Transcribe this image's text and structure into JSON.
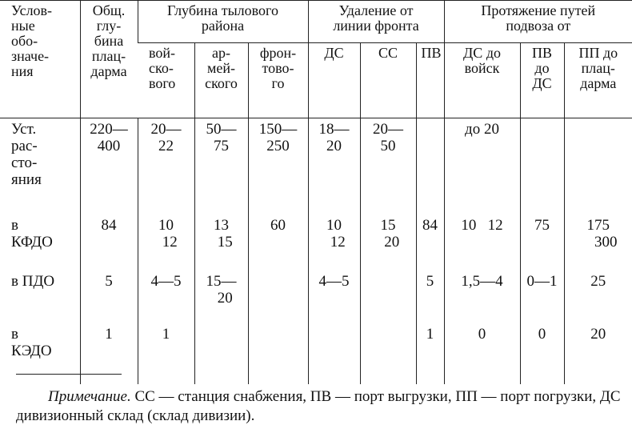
{
  "table": {
    "header_top": [
      "Услов-\nные\nобо-\nзначе-\nния",
      "Общ.\nглу-\nбина\nплац-\nдарма",
      "Глубина тылового\nрайона",
      "Удаление от\nлинии фронта",
      "Протяжение путей\nподвоза от"
    ],
    "header_sub": [
      "вой-\nско-\nвого",
      "ар-\nмей-\nского",
      "фрон-\nтово-\nго",
      "ДС",
      "СС",
      "ПВ",
      "ДС до\nвойск",
      "ПВ\nдо\nДС",
      "ПП до\nплац-\nдарма"
    ],
    "rows": [
      [
        "Уст.\nрас-\nсто-\nяния",
        "220—\n400",
        "20—\n22",
        "50—\n75",
        "150—\n250",
        "18—\n20",
        "20—\n50",
        null,
        "до 20",
        null,
        null
      ],
      [
        "в\nКФДО",
        "84",
        "10\n  12",
        "13\n  15",
        "60",
        "10\n  12",
        "15\n  20",
        "84",
        "10   12",
        "75",
        "175\n    300"
      ],
      [
        "в ПДО",
        "5",
        "4—5",
        "15—\n  20",
        null,
        "4—5",
        null,
        "5",
        "1,5—4",
        "0—1",
        "25"
      ],
      [
        "в\nКЭДО",
        "1",
        "1",
        null,
        null,
        null,
        null,
        "1",
        "0",
        "0",
        "20"
      ]
    ]
  },
  "note": {
    "label": "Примечание.",
    "text": " СС — станция снабжения, ПВ — порт выгрузки, ПП — порт погрузки, ДС    дивизионный склад (склад дивизии)."
  }
}
